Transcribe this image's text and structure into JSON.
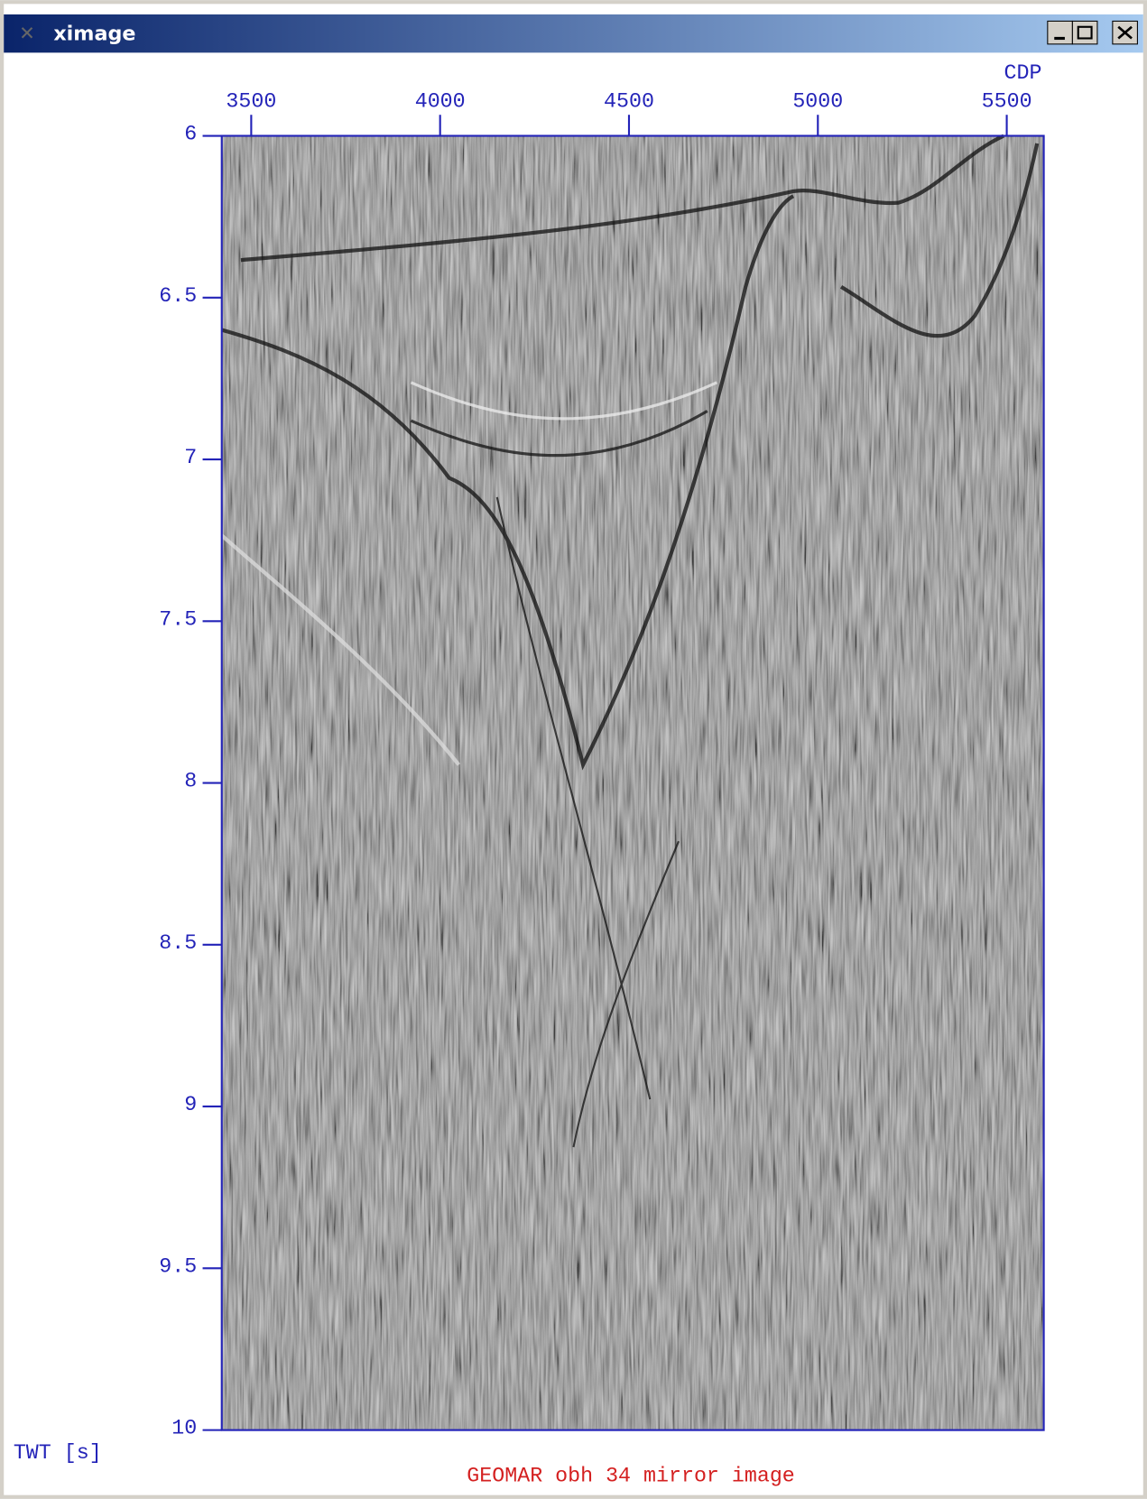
{
  "window": {
    "title": "ximage"
  },
  "chart_data": {
    "type": "image",
    "title": "GEOMAR obh 34 mirror image",
    "x_label": "CDP",
    "y_label": "TWT [s]",
    "xlim": [
      3422,
      5598
    ],
    "xticks": [
      3500,
      4000,
      4500,
      5000,
      5500
    ],
    "ylim": [
      6,
      10
    ],
    "yticks": [
      6,
      6.5,
      7,
      7.5,
      8,
      8.5,
      9,
      9.5,
      10
    ]
  }
}
